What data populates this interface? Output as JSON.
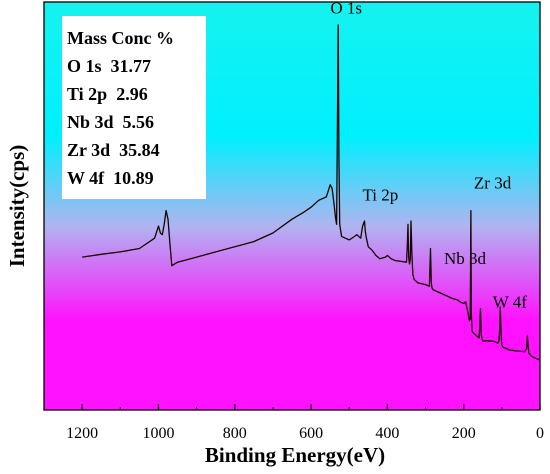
{
  "chart_data": {
    "type": "line",
    "title": "",
    "xlabel": "Binding Energy(eV)",
    "ylabel": "Intensity(cps)",
    "xlim": [
      1300,
      0
    ],
    "x_reversed": true,
    "xticks": [
      1200,
      1000,
      800,
      600,
      400,
      200,
      0
    ],
    "ylim": [
      0,
      100
    ],
    "y_ticks_shown": false,
    "grid": false,
    "background": {
      "type": "vertical-gradient",
      "top_color": "#15f2ef",
      "upper_color": "#00f0ff",
      "middle_color": "#b0b4f0",
      "bottom_color": "#ff12ff"
    },
    "line_color": "#1a0000",
    "series": [
      {
        "name": "",
        "x": [
          1200,
          1150,
          1100,
          1050,
          1010,
          1000,
          995,
          990,
          985,
          980,
          975,
          970,
          965,
          950,
          900,
          850,
          800,
          750,
          700,
          650,
          620,
          600,
          580,
          560,
          550,
          545,
          540,
          536,
          533,
          531,
          529,
          527,
          525,
          520,
          510,
          500,
          490,
          480,
          470,
          465,
          460,
          458,
          455,
          450,
          440,
          430,
          420,
          405,
          400,
          390,
          380,
          350,
          348,
          346,
          345,
          344,
          342,
          340,
          338,
          336,
          334,
          333,
          332,
          330,
          320,
          300,
          290,
          287,
          285,
          283,
          280,
          270,
          250,
          240,
          230,
          215,
          210,
          200,
          195,
          190,
          185,
          183,
          182,
          181,
          180,
          178,
          175,
          170,
          165,
          160,
          158,
          156,
          154,
          150,
          140,
          120,
          110,
          108,
          106,
          104,
          102,
          100,
          98,
          95,
          90,
          80,
          60,
          40,
          35,
          33,
          31,
          29,
          25,
          20,
          10,
          5,
          0
        ],
        "values": [
          30.5,
          31.3,
          32.0,
          33.0,
          36.0,
          39.5,
          37.5,
          37.0,
          40.0,
          44.0,
          41.5,
          34.5,
          28.0,
          29.0,
          30.5,
          32.0,
          33.5,
          35.0,
          37.5,
          41.5,
          43.5,
          45.0,
          47.0,
          48.0,
          51.5,
          50.5,
          46.0,
          42.0,
          40.0,
          68.0,
          98.0,
          60.0,
          40.0,
          36.5,
          36.0,
          35.5,
          36.2,
          37.0,
          36.0,
          39.5,
          41.0,
          38.0,
          36.0,
          33.5,
          32.5,
          31.0,
          30.0,
          30.5,
          31.0,
          30.0,
          29.5,
          29.0,
          33.0,
          40.0,
          34.0,
          30.0,
          28.5,
          30.0,
          41.0,
          32.0,
          27.0,
          25.5,
          25.0,
          24.0,
          23.0,
          22.5,
          22.0,
          33.0,
          23.0,
          21.5,
          21.0,
          20.5,
          19.5,
          19.0,
          18.5,
          18.0,
          17.5,
          17.0,
          17.5,
          15.0,
          12.0,
          12.5,
          29.0,
          44.0,
          14.0,
          9.0,
          8.5,
          8.0,
          7.5,
          7.0,
          10.0,
          15.5,
          8.0,
          6.0,
          6.2,
          6.0,
          5.5,
          6.0,
          9.0,
          16.0,
          8.0,
          5.0,
          4.5,
          4.2,
          4.0,
          3.5,
          3.2,
          3.0,
          4.0,
          7.5,
          4.5,
          2.5,
          2.0,
          1.5,
          1.0,
          0.8,
          0.5
        ]
      }
    ],
    "annotations": [
      {
        "text": "O 1s",
        "x": 529,
        "y": 99
      },
      {
        "text": "Ti 2p",
        "x": 455,
        "y": 44
      },
      {
        "text": "Zr 3d",
        "x": 182,
        "y": 47
      },
      {
        "text": "Nb 3d",
        "x": 207,
        "y": 25
      },
      {
        "text": "W 4f",
        "x": 100,
        "y": 13
      }
    ],
    "legend_box": {
      "placement": "top-left",
      "lines": [
        "Mass Conc %",
        "O 1s  31.77",
        "Ti 2p  2.96",
        "Nb 3d  5.56",
        "Zr 3d  35.84",
        "W 4f  10.89"
      ]
    }
  }
}
